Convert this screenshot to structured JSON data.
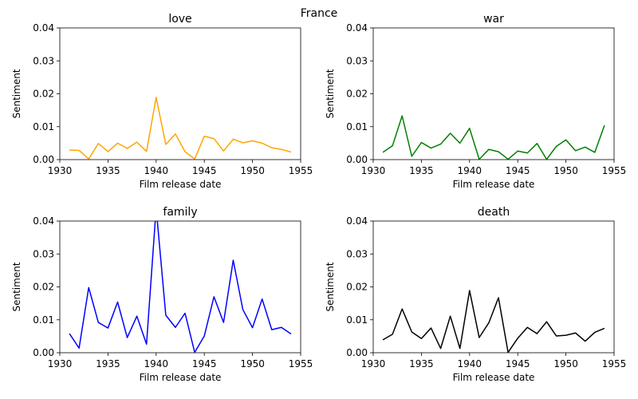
{
  "figure": {
    "suptitle": "France"
  },
  "chart_data": [
    {
      "type": "line",
      "title": "love",
      "xlabel": "Film release date",
      "ylabel": "Sentiment",
      "color": "#ffa500",
      "xlim": [
        1930,
        1955
      ],
      "ylim": [
        0,
        0.04
      ],
      "xticks": [
        "1930",
        "1935",
        "1940",
        "1945",
        "1950",
        "1955"
      ],
      "yticks": [
        "0.00",
        "0.01",
        "0.02",
        "0.03",
        "0.04"
      ],
      "x": [
        1931,
        1932,
        1933,
        1934,
        1935,
        1936,
        1937,
        1938,
        1939,
        1940,
        1941,
        1942,
        1943,
        1944,
        1945,
        1946,
        1947,
        1948,
        1949,
        1950,
        1951,
        1952,
        1953,
        1954
      ],
      "y": [
        0.0029,
        0.0028,
        0.0002,
        0.0049,
        0.0024,
        0.005,
        0.0034,
        0.0053,
        0.0025,
        0.0189,
        0.0046,
        0.0078,
        0.0024,
        0.0002,
        0.0071,
        0.0064,
        0.0026,
        0.0062,
        0.0051,
        0.0057,
        0.005,
        0.0036,
        0.0031,
        0.0023
      ]
    },
    {
      "type": "line",
      "title": "war",
      "xlabel": "Film release date",
      "ylabel": "Sentiment",
      "color": "#008000",
      "xlim": [
        1930,
        1955
      ],
      "ylim": [
        0,
        0.04
      ],
      "xticks": [
        "1930",
        "1935",
        "1940",
        "1945",
        "1950",
        "1955"
      ],
      "yticks": [
        "0.00",
        "0.01",
        "0.02",
        "0.03",
        "0.04"
      ],
      "x": [
        1931,
        1932,
        1933,
        1934,
        1935,
        1936,
        1937,
        1938,
        1939,
        1940,
        1941,
        1942,
        1943,
        1944,
        1945,
        1946,
        1947,
        1948,
        1949,
        1950,
        1951,
        1952,
        1953,
        1954
      ],
      "y": [
        0.0022,
        0.0042,
        0.0133,
        0.001,
        0.0052,
        0.0035,
        0.0047,
        0.008,
        0.005,
        0.0095,
        0.0001,
        0.0031,
        0.0024,
        0.0001,
        0.0026,
        0.002,
        0.0049,
        0.0001,
        0.004,
        0.006,
        0.0027,
        0.0038,
        0.0022,
        0.0104
      ]
    },
    {
      "type": "line",
      "title": "family",
      "xlabel": "Film release date",
      "ylabel": "Sentiment",
      "color": "#0000ff",
      "xlim": [
        1930,
        1955
      ],
      "ylim": [
        0,
        0.04
      ],
      "xticks": [
        "1930",
        "1935",
        "1940",
        "1945",
        "1950",
        "1955"
      ],
      "yticks": [
        "0.00",
        "0.01",
        "0.02",
        "0.03",
        "0.04"
      ],
      "x": [
        1931,
        1932,
        1933,
        1934,
        1935,
        1936,
        1937,
        1938,
        1939,
        1940,
        1941,
        1942,
        1943,
        1944,
        1945,
        1946,
        1947,
        1948,
        1949,
        1950,
        1951,
        1952,
        1953,
        1954
      ],
      "y": [
        0.0058,
        0.0014,
        0.0198,
        0.0092,
        0.0075,
        0.0154,
        0.0046,
        0.0111,
        0.0026,
        0.044,
        0.0114,
        0.0077,
        0.012,
        0.0001,
        0.0051,
        0.017,
        0.0092,
        0.0281,
        0.0131,
        0.0076,
        0.0163,
        0.007,
        0.0077,
        0.0057
      ]
    },
    {
      "type": "line",
      "title": "death",
      "xlabel": "Film release date",
      "ylabel": "Sentiment",
      "color": "#000000",
      "xlim": [
        1930,
        1955
      ],
      "ylim": [
        0,
        0.04
      ],
      "xticks": [
        "1930",
        "1935",
        "1940",
        "1945",
        "1950",
        "1955"
      ],
      "yticks": [
        "0.00",
        "0.01",
        "0.02",
        "0.03",
        "0.04"
      ],
      "x": [
        1931,
        1932,
        1933,
        1934,
        1935,
        1936,
        1937,
        1938,
        1939,
        1940,
        1941,
        1942,
        1943,
        1944,
        1945,
        1946,
        1947,
        1948,
        1949,
        1950,
        1951,
        1952,
        1953,
        1954
      ],
      "y": [
        0.0039,
        0.0056,
        0.0133,
        0.0063,
        0.0043,
        0.0075,
        0.0013,
        0.0111,
        0.0013,
        0.0189,
        0.0046,
        0.0091,
        0.0167,
        0.0001,
        0.0044,
        0.0077,
        0.0058,
        0.0094,
        0.0051,
        0.0053,
        0.006,
        0.0035,
        0.0062,
        0.0074
      ]
    }
  ]
}
